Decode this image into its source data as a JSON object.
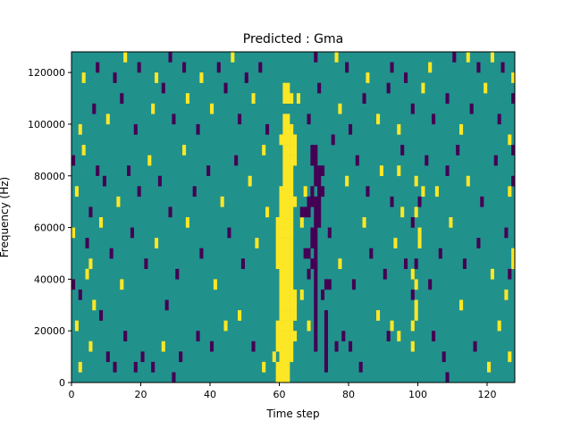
{
  "chart_data": {
    "type": "heatmap",
    "title": "Predicted : Gma",
    "xlabel": "Time step",
    "ylabel": "Frequency (Hz)",
    "xlim": [
      0,
      128
    ],
    "ylim": [
      0,
      128000
    ],
    "x_ticks": [
      0,
      20,
      40,
      60,
      80,
      100,
      120
    ],
    "y_ticks": [
      0,
      20000,
      40000,
      60000,
      80000,
      100000,
      120000
    ],
    "x_tick_labels": [
      "0",
      "20",
      "40",
      "60",
      "80",
      "100",
      "120"
    ],
    "y_tick_labels": [
      "0",
      "20000",
      "40000",
      "60000",
      "80000",
      "100000",
      "120000"
    ],
    "grid": false,
    "colormap": "viridis",
    "levels": [
      {
        "value": -1,
        "color": "#440154"
      },
      {
        "value": 0,
        "color": "#21918c"
      },
      {
        "value": 1,
        "color": "#fde725"
      }
    ],
    "background_value": 0,
    "num_time_steps": 128,
    "num_frequency_bins": 32,
    "frequency_bin_hz": 4000,
    "cells": [
      [
        59,
        0,
        1
      ],
      [
        60,
        0,
        1
      ],
      [
        61,
        0,
        1
      ],
      [
        62,
        0,
        1
      ],
      [
        59,
        1,
        1
      ],
      [
        60,
        1,
        1
      ],
      [
        61,
        1,
        1
      ],
      [
        62,
        1,
        1
      ],
      [
        73,
        1,
        -1
      ],
      [
        58,
        2,
        1
      ],
      [
        60,
        2,
        1
      ],
      [
        61,
        2,
        1
      ],
      [
        62,
        2,
        1
      ],
      [
        63,
        2,
        1
      ],
      [
        73,
        2,
        -1
      ],
      [
        59,
        3,
        1
      ],
      [
        60,
        3,
        1
      ],
      [
        61,
        3,
        1
      ],
      [
        62,
        3,
        1
      ],
      [
        63,
        3,
        1
      ],
      [
        70,
        3,
        -1
      ],
      [
        73,
        3,
        -1
      ],
      [
        59,
        4,
        1
      ],
      [
        60,
        4,
        1
      ],
      [
        61,
        4,
        1
      ],
      [
        62,
        4,
        1
      ],
      [
        63,
        4,
        1
      ],
      [
        64,
        4,
        1
      ],
      [
        70,
        4,
        -1
      ],
      [
        73,
        4,
        -1
      ],
      [
        59,
        5,
        1
      ],
      [
        60,
        5,
        1
      ],
      [
        61,
        5,
        1
      ],
      [
        62,
        5,
        1
      ],
      [
        63,
        5,
        1
      ],
      [
        70,
        5,
        -1
      ],
      [
        73,
        5,
        -1
      ],
      [
        60,
        6,
        1
      ],
      [
        61,
        6,
        1
      ],
      [
        62,
        6,
        1
      ],
      [
        63,
        6,
        1
      ],
      [
        64,
        6,
        1
      ],
      [
        70,
        6,
        -1
      ],
      [
        73,
        6,
        -1
      ],
      [
        60,
        7,
        1
      ],
      [
        61,
        7,
        1
      ],
      [
        62,
        7,
        1
      ],
      [
        63,
        7,
        1
      ],
      [
        64,
        7,
        1
      ],
      [
        70,
        7,
        -1
      ],
      [
        60,
        8,
        1
      ],
      [
        61,
        8,
        1
      ],
      [
        62,
        8,
        1
      ],
      [
        63,
        8,
        1
      ],
      [
        64,
        8,
        1
      ],
      [
        70,
        8,
        -1
      ],
      [
        60,
        9,
        1
      ],
      [
        61,
        9,
        1
      ],
      [
        62,
        9,
        1
      ],
      [
        63,
        9,
        1
      ],
      [
        70,
        9,
        -1
      ],
      [
        60,
        10,
        1
      ],
      [
        61,
        10,
        1
      ],
      [
        62,
        10,
        1
      ],
      [
        63,
        10,
        1
      ],
      [
        70,
        10,
        -1
      ],
      [
        59,
        11,
        1
      ],
      [
        60,
        11,
        1
      ],
      [
        61,
        11,
        1
      ],
      [
        62,
        11,
        1
      ],
      [
        63,
        11,
        1
      ],
      [
        70,
        11,
        -1
      ],
      [
        59,
        12,
        1
      ],
      [
        60,
        12,
        1
      ],
      [
        61,
        12,
        1
      ],
      [
        62,
        12,
        1
      ],
      [
        63,
        12,
        1
      ],
      [
        70,
        12,
        -1
      ],
      [
        59,
        13,
        1
      ],
      [
        60,
        13,
        1
      ],
      [
        61,
        13,
        1
      ],
      [
        62,
        13,
        1
      ],
      [
        63,
        13,
        1
      ],
      [
        69,
        13,
        -1
      ],
      [
        70,
        13,
        -1
      ],
      [
        59,
        14,
        1
      ],
      [
        60,
        14,
        1
      ],
      [
        61,
        14,
        1
      ],
      [
        62,
        14,
        1
      ],
      [
        63,
        14,
        1
      ],
      [
        69,
        14,
        -1
      ],
      [
        70,
        14,
        -1
      ],
      [
        59,
        15,
        1
      ],
      [
        60,
        15,
        1
      ],
      [
        61,
        15,
        1
      ],
      [
        62,
        15,
        1
      ],
      [
        63,
        15,
        1
      ],
      [
        70,
        15,
        -1
      ],
      [
        71,
        15,
        -1
      ],
      [
        60,
        16,
        1
      ],
      [
        61,
        16,
        1
      ],
      [
        62,
        16,
        1
      ],
      [
        63,
        16,
        1
      ],
      [
        70,
        16,
        -1
      ],
      [
        71,
        16,
        -1
      ],
      [
        60,
        17,
        1
      ],
      [
        61,
        17,
        1
      ],
      [
        62,
        17,
        1
      ],
      [
        63,
        17,
        1
      ],
      [
        64,
        17,
        1
      ],
      [
        70,
        17,
        -1
      ],
      [
        71,
        17,
        -1
      ],
      [
        60,
        18,
        1
      ],
      [
        61,
        18,
        1
      ],
      [
        62,
        18,
        1
      ],
      [
        63,
        18,
        1
      ],
      [
        71,
        18,
        -1
      ],
      [
        72,
        18,
        -1
      ],
      [
        61,
        19,
        1
      ],
      [
        62,
        19,
        1
      ],
      [
        63,
        19,
        1
      ],
      [
        70,
        19,
        -1
      ],
      [
        71,
        19,
        -1
      ],
      [
        61,
        20,
        1
      ],
      [
        62,
        20,
        1
      ],
      [
        63,
        20,
        1
      ],
      [
        70,
        20,
        -1
      ],
      [
        71,
        20,
        -1
      ],
      [
        61,
        21,
        1
      ],
      [
        62,
        21,
        1
      ],
      [
        63,
        21,
        1
      ],
      [
        64,
        21,
        1
      ],
      [
        69,
        21,
        -1
      ],
      [
        70,
        21,
        -1
      ],
      [
        61,
        22,
        1
      ],
      [
        62,
        22,
        1
      ],
      [
        63,
        22,
        1
      ],
      [
        64,
        22,
        1
      ],
      [
        69,
        22,
        -1
      ],
      [
        70,
        22,
        -1
      ],
      [
        60,
        23,
        1
      ],
      [
        61,
        23,
        1
      ],
      [
        62,
        23,
        1
      ],
      [
        63,
        23,
        1
      ],
      [
        64,
        23,
        1
      ],
      [
        61,
        24,
        1
      ],
      [
        62,
        24,
        1
      ],
      [
        63,
        24,
        1
      ],
      [
        61,
        25,
        1
      ],
      [
        62,
        25,
        1
      ],
      [
        61,
        27,
        1
      ],
      [
        62,
        27,
        1
      ],
      [
        63,
        27,
        1
      ],
      [
        61,
        28,
        1
      ],
      [
        62,
        28,
        1
      ],
      [
        2,
        1,
        1
      ],
      [
        5,
        3,
        1
      ],
      [
        10,
        2,
        -1
      ],
      [
        12,
        1,
        -1
      ],
      [
        15,
        4,
        -1
      ],
      [
        18,
        1,
        -1
      ],
      [
        20,
        2,
        -1
      ],
      [
        23,
        1,
        -1
      ],
      [
        26,
        3,
        1
      ],
      [
        29,
        0,
        -1
      ],
      [
        31,
        2,
        -1
      ],
      [
        36,
        4,
        -1
      ],
      [
        40,
        3,
        -1
      ],
      [
        44,
        5,
        1
      ],
      [
        48,
        6,
        1
      ],
      [
        52,
        3,
        -1
      ],
      [
        55,
        1,
        1
      ],
      [
        66,
        8,
        1
      ],
      [
        68,
        5,
        1
      ],
      [
        76,
        3,
        -1
      ],
      [
        78,
        4,
        -1
      ],
      [
        80,
        3,
        -1
      ],
      [
        83,
        1,
        -1
      ],
      [
        88,
        6,
        1
      ],
      [
        94,
        4,
        1
      ],
      [
        98,
        3,
        1
      ],
      [
        99,
        6,
        1
      ],
      [
        104,
        4,
        -1
      ],
      [
        107,
        2,
        -1
      ],
      [
        108,
        0,
        -1
      ],
      [
        112,
        7,
        1
      ],
      [
        116,
        3,
        -1
      ],
      [
        120,
        1,
        1
      ],
      [
        123,
        5,
        1
      ],
      [
        126,
        2,
        1
      ],
      [
        2,
        8,
        -1
      ],
      [
        4,
        10,
        1
      ],
      [
        8,
        6,
        -1
      ],
      [
        11,
        12,
        -1
      ],
      [
        14,
        9,
        1
      ],
      [
        17,
        14,
        -1
      ],
      [
        21,
        11,
        -1
      ],
      [
        24,
        13,
        1
      ],
      [
        27,
        7,
        -1
      ],
      [
        30,
        10,
        -1
      ],
      [
        33,
        15,
        1
      ],
      [
        37,
        12,
        -1
      ],
      [
        41,
        9,
        1
      ],
      [
        45,
        14,
        -1
      ],
      [
        49,
        11,
        -1
      ],
      [
        53,
        13,
        1
      ],
      [
        56,
        16,
        1
      ],
      [
        67,
        12,
        -1
      ],
      [
        74,
        14,
        -1
      ],
      [
        77,
        11,
        1
      ],
      [
        81,
        9,
        -1
      ],
      [
        84,
        15,
        1
      ],
      [
        86,
        12,
        -1
      ],
      [
        90,
        10,
        -1
      ],
      [
        93,
        13,
        1
      ],
      [
        96,
        11,
        -1
      ],
      [
        100,
        14,
        1
      ],
      [
        103,
        9,
        -1
      ],
      [
        106,
        12,
        -1
      ],
      [
        109,
        15,
        1
      ],
      [
        113,
        11,
        -1
      ],
      [
        117,
        13,
        -1
      ],
      [
        121,
        10,
        1
      ],
      [
        125,
        14,
        -1
      ],
      [
        1,
        18,
        1
      ],
      [
        5,
        16,
        -1
      ],
      [
        9,
        19,
        -1
      ],
      [
        13,
        17,
        1
      ],
      [
        16,
        20,
        -1
      ],
      [
        19,
        18,
        -1
      ],
      [
        22,
        21,
        1
      ],
      [
        25,
        19,
        -1
      ],
      [
        28,
        16,
        -1
      ],
      [
        32,
        22,
        1
      ],
      [
        35,
        18,
        -1
      ],
      [
        39,
        20,
        -1
      ],
      [
        43,
        17,
        1
      ],
      [
        47,
        21,
        -1
      ],
      [
        51,
        19,
        1
      ],
      [
        55,
        22,
        1
      ],
      [
        67,
        18,
        1
      ],
      [
        72,
        20,
        -1
      ],
      [
        75,
        23,
        -1
      ],
      [
        79,
        19,
        1
      ],
      [
        82,
        21,
        -1
      ],
      [
        85,
        18,
        -1
      ],
      [
        89,
        20,
        1
      ],
      [
        92,
        17,
        -1
      ],
      [
        95,
        22,
        -1
      ],
      [
        99,
        19,
        1
      ],
      [
        102,
        21,
        -1
      ],
      [
        105,
        18,
        1
      ],
      [
        108,
        20,
        -1
      ],
      [
        111,
        22,
        -1
      ],
      [
        114,
        19,
        1
      ],
      [
        118,
        17,
        -1
      ],
      [
        122,
        21,
        -1
      ],
      [
        126,
        18,
        1
      ],
      [
        2,
        24,
        1
      ],
      [
        6,
        26,
        -1
      ],
      [
        10,
        25,
        1
      ],
      [
        14,
        27,
        -1
      ],
      [
        18,
        24,
        -1
      ],
      [
        23,
        26,
        1
      ],
      [
        26,
        28,
        -1
      ],
      [
        29,
        25,
        -1
      ],
      [
        33,
        27,
        1
      ],
      [
        36,
        24,
        -1
      ],
      [
        40,
        26,
        1
      ],
      [
        44,
        28,
        -1
      ],
      [
        48,
        25,
        -1
      ],
      [
        52,
        27,
        1
      ],
      [
        56,
        24,
        -1
      ],
      [
        65,
        27,
        1
      ],
      [
        68,
        25,
        -1
      ],
      [
        71,
        28,
        -1
      ],
      [
        77,
        26,
        1
      ],
      [
        80,
        24,
        -1
      ],
      [
        84,
        27,
        -1
      ],
      [
        88,
        25,
        1
      ],
      [
        91,
        28,
        -1
      ],
      [
        94,
        24,
        1
      ],
      [
        98,
        26,
        -1
      ],
      [
        101,
        28,
        1
      ],
      [
        104,
        25,
        -1
      ],
      [
        108,
        27,
        -1
      ],
      [
        112,
        24,
        1
      ],
      [
        115,
        26,
        -1
      ],
      [
        119,
        28,
        1
      ],
      [
        123,
        25,
        -1
      ],
      [
        127,
        27,
        -1
      ],
      [
        3,
        29,
        1
      ],
      [
        7,
        30,
        -1
      ],
      [
        12,
        29,
        -1
      ],
      [
        15,
        31,
        1
      ],
      [
        19,
        30,
        -1
      ],
      [
        24,
        29,
        1
      ],
      [
        28,
        31,
        -1
      ],
      [
        32,
        30,
        -1
      ],
      [
        37,
        29,
        1
      ],
      [
        42,
        30,
        -1
      ],
      [
        46,
        31,
        1
      ],
      [
        50,
        29,
        -1
      ],
      [
        54,
        30,
        -1
      ],
      [
        70,
        31,
        -1
      ],
      [
        76,
        31,
        1
      ],
      [
        79,
        30,
        -1
      ],
      [
        85,
        29,
        1
      ],
      [
        92,
        30,
        -1
      ],
      [
        96,
        29,
        -1
      ],
      [
        103,
        30,
        1
      ],
      [
        110,
        31,
        -1
      ],
      [
        114,
        31,
        1
      ],
      [
        117,
        30,
        -1
      ],
      [
        121,
        31,
        1
      ],
      [
        124,
        30,
        -1
      ],
      [
        127,
        29,
        1
      ],
      [
        0,
        14,
        1
      ],
      [
        0,
        9,
        -1
      ],
      [
        1,
        5,
        1
      ],
      [
        0,
        21,
        -1
      ],
      [
        3,
        22,
        1
      ],
      [
        4,
        13,
        -1
      ],
      [
        5,
        11,
        1
      ],
      [
        6,
        7,
        1
      ],
      [
        7,
        20,
        -1
      ],
      [
        8,
        15,
        1
      ],
      [
        127,
        11,
        1
      ],
      [
        127,
        12,
        1
      ],
      [
        126,
        10,
        -1
      ],
      [
        127,
        19,
        -1
      ],
      [
        126,
        23,
        1
      ],
      [
        127,
        22,
        -1
      ],
      [
        125,
        8,
        1
      ],
      [
        66,
        15,
        1
      ],
      [
        66,
        16,
        -1
      ],
      [
        67,
        16,
        -1
      ],
      [
        68,
        16,
        -1
      ],
      [
        69,
        17,
        -1
      ],
      [
        68,
        17,
        -1
      ],
      [
        69,
        18,
        -1
      ],
      [
        68,
        10,
        -1
      ],
      [
        69,
        11,
        -1
      ],
      [
        68,
        12,
        -1
      ],
      [
        73,
        9,
        -1
      ],
      [
        74,
        9,
        -1
      ],
      [
        72,
        8,
        -1
      ],
      [
        91,
        4,
        -1
      ],
      [
        92,
        5,
        1
      ],
      [
        98,
        5,
        1
      ],
      [
        99,
        7,
        1
      ],
      [
        98,
        8,
        -1
      ],
      [
        99,
        9,
        1
      ],
      [
        98,
        10,
        1
      ],
      [
        99,
        11,
        -1
      ],
      [
        100,
        13,
        1
      ],
      [
        98,
        15,
        -1
      ],
      [
        99,
        16,
        1
      ],
      [
        100,
        17,
        -1
      ],
      [
        101,
        18,
        1
      ],
      [
        95,
        16,
        1
      ],
      [
        94,
        20,
        1
      ]
    ]
  }
}
